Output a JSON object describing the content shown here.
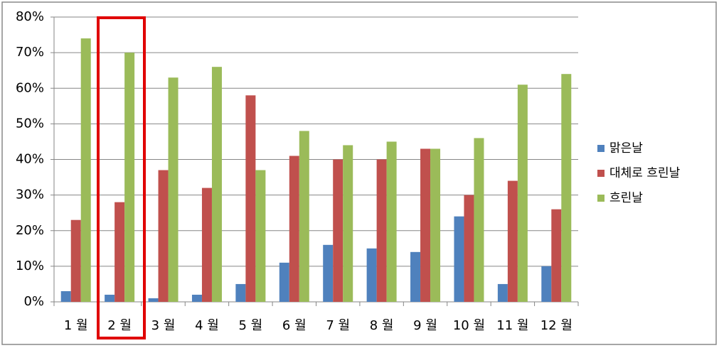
{
  "chart_data": {
    "type": "bar",
    "categories": [
      "1 월",
      "2 월",
      "3 월",
      "4 월",
      "5 월",
      "6 월",
      "7 월",
      "8 월",
      "9 월",
      "10 월",
      "11 월",
      "12 월"
    ],
    "series": [
      {
        "name": "맑은날",
        "color": "#4f81bd",
        "values": [
          3,
          2,
          1,
          2,
          5,
          11,
          16,
          15,
          14,
          24,
          5,
          10
        ]
      },
      {
        "name": "대체로 흐린날",
        "color": "#c0504d",
        "values": [
          23,
          28,
          37,
          32,
          58,
          41,
          40,
          40,
          43,
          30,
          34,
          26
        ]
      },
      {
        "name": "흐린날",
        "color": "#9bbb59",
        "values": [
          74,
          70,
          63,
          66,
          37,
          48,
          44,
          45,
          43,
          46,
          61,
          64
        ]
      }
    ],
    "ylim": [
      0,
      80
    ],
    "yticks": [
      {
        "value": 0,
        "label": "0%"
      },
      {
        "value": 10,
        "label": "10%"
      },
      {
        "value": 20,
        "label": "20%"
      },
      {
        "value": 30,
        "label": "30%"
      },
      {
        "value": 40,
        "label": "40%"
      },
      {
        "value": 50,
        "label": "50%"
      },
      {
        "value": 60,
        "label": "60%"
      },
      {
        "value": 70,
        "label": "70%"
      },
      {
        "value": 80,
        "label": "80%"
      }
    ],
    "grid": true,
    "legend": "right"
  }
}
